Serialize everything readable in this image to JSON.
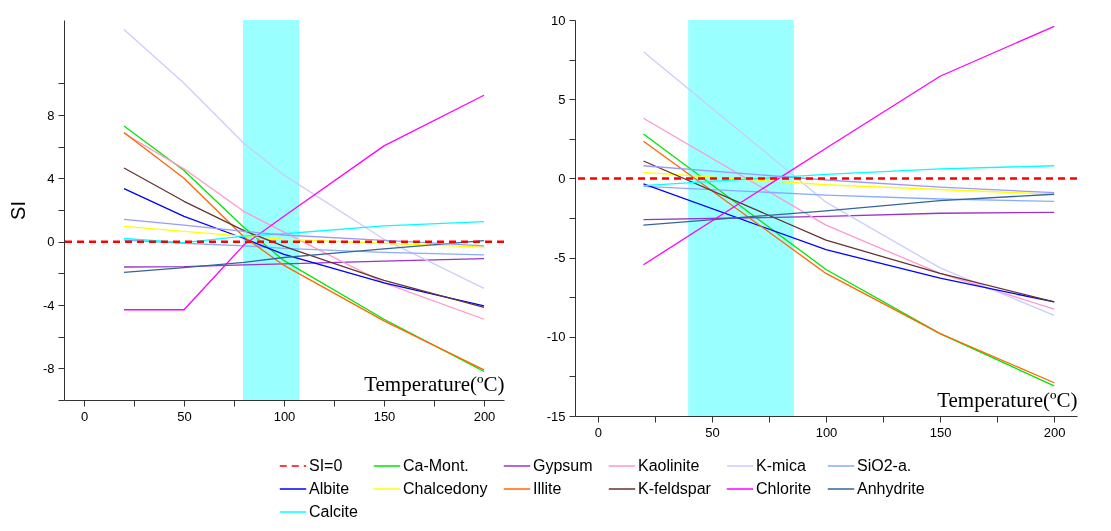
{
  "chart_data": [
    {
      "type": "line",
      "xlabel": "Temperature(ºC)",
      "ylabel": "SI",
      "legend": "bottom",
      "x": [
        20,
        50,
        80,
        100,
        150,
        200
      ],
      "xlim": [
        -10,
        210
      ],
      "xticks": [
        0,
        {
          "value": 25,
          "label": null
        },
        50,
        {
          "value": 75,
          "label": null
        },
        100,
        {
          "value": 125,
          "label": null
        },
        150,
        {
          "value": 175,
          "label": null
        },
        200
      ],
      "ylim": [
        -10,
        14
      ],
      "yticks": [
        {
          "value": -10,
          "label": null
        },
        -8,
        {
          "value": -6,
          "label": null
        },
        -4,
        {
          "value": -2,
          "label": null
        },
        0,
        {
          "value": 2,
          "label": null
        },
        4,
        {
          "value": 6,
          "label": null
        },
        8,
        {
          "value": 10,
          "label": null
        }
      ],
      "bands": [
        {
          "axis": "x",
          "from": 79.5,
          "to": 107.5,
          "color": "#99ffff"
        }
      ],
      "ref_lines": [
        {
          "axis": "y",
          "value": 0,
          "label": "SI=0",
          "color": "#ff0000",
          "line_style": "dashed"
        }
      ],
      "series": [
        {
          "name": "Ca-Mont.",
          "color": "#00e600",
          "values": [
            7.3,
            4.5,
            0.9,
            -1.2,
            -4.9,
            -8.2
          ]
        },
        {
          "name": "Gypsum",
          "color": "#9933cc",
          "values": [
            -1.6,
            -1.58,
            -1.47,
            -1.4,
            -1.23,
            -1.07
          ]
        },
        {
          "name": "Kaolinite",
          "color": "#ff99cc",
          "values": [
            6.85,
            4.6,
            1.9,
            0.6,
            -2.6,
            -4.9
          ]
        },
        {
          "name": "K-mica",
          "color": "#ccccff",
          "values": [
            13.4,
            10.0,
            6.2,
            4.2,
            0.15,
            -2.95
          ]
        },
        {
          "name": "SiO2-a.",
          "color": "#88aaff",
          "values": [
            0.1,
            -0.1,
            -0.26,
            -0.42,
            -0.67,
            -0.83
          ]
        },
        {
          "name": "Albite",
          "color": "#0000ff",
          "values": [
            3.35,
            1.6,
            0.2,
            -0.8,
            -2.6,
            -4.05
          ]
        },
        {
          "name": "Chalcedony",
          "color": "#ffff00",
          "values": [
            0.97,
            0.65,
            0.35,
            0.15,
            -0.1,
            -0.35
          ]
        },
        {
          "name": "Illite",
          "color": "#ff6600",
          "values": [
            6.9,
            4.0,
            0.3,
            -1.5,
            -5.0,
            -8.1
          ]
        },
        {
          "name": "K-feldspar",
          "color": "#663333",
          "values": [
            4.65,
            2.55,
            0.7,
            -0.3,
            -2.45,
            -4.15
          ]
        },
        {
          "name": "Chlorite",
          "color": "#ff00ff",
          "values": [
            -4.3,
            -4.3,
            -0.2,
            1.6,
            6.05,
            9.25
          ]
        },
        {
          "name": "Anhydrite",
          "color": "#336699",
          "values": [
            -1.94,
            -1.64,
            -1.31,
            -1.0,
            -0.46,
            0.06
          ]
        },
        {
          "name": "Calcite",
          "color": "#00ffff",
          "values": [
            0.2,
            -0.06,
            0.35,
            0.5,
            1.0,
            1.27
          ]
        },
        {
          "color": "#9999ff",
          "values": [
            1.41,
            1.05,
            0.65,
            0.42,
            0.08,
            -0.26
          ]
        }
      ]
    },
    {
      "type": "line",
      "xlabel": "Temperature(ºC)",
      "x": [
        20,
        100,
        150,
        200
      ],
      "xlim": [
        -10,
        210
      ],
      "xticks": [
        0,
        {
          "value": 25,
          "label": null
        },
        50,
        {
          "value": 75,
          "label": null
        },
        100,
        {
          "value": 125,
          "label": null
        },
        150,
        {
          "value": 175,
          "label": null
        },
        200
      ],
      "ylim": [
        -15,
        10
      ],
      "yticks": [
        -15,
        {
          "value": -12.5,
          "label": null
        },
        -10,
        {
          "value": -7.5,
          "label": null
        },
        -5,
        {
          "value": -2.5,
          "label": null
        },
        0,
        {
          "value": 2.5,
          "label": null
        },
        5,
        {
          "value": 7.5,
          "label": null
        },
        10
      ],
      "bands": [
        {
          "axis": "x",
          "from": 39.6,
          "to": 85.9,
          "color": "#99ffff"
        }
      ],
      "ref_lines": [
        {
          "axis": "y",
          "value": 0,
          "color": "#ff0000",
          "line_style": "dashed"
        }
      ],
      "series": [
        {
          "color": "#00e600",
          "values": [
            2.8,
            -5.75,
            -9.8,
            -13.1
          ]
        },
        {
          "color": "#9933cc",
          "values": [
            -2.6,
            -2.4,
            -2.2,
            -2.15
          ]
        },
        {
          "color": "#ff99cc",
          "values": [
            3.8,
            -2.95,
            -6.0,
            -8.25
          ]
        },
        {
          "color": "#ccccff",
          "values": [
            8.0,
            -1.5,
            -5.65,
            -8.65
          ]
        },
        {
          "color": "#88aaff",
          "values": [
            -0.5,
            -1.05,
            -1.3,
            -1.45
          ]
        },
        {
          "color": "#0000ff",
          "values": [
            -0.35,
            -4.5,
            -6.3,
            -7.8
          ]
        },
        {
          "color": "#ffff00",
          "values": [
            0.38,
            -0.4,
            -0.7,
            -1.0
          ]
        },
        {
          "color": "#ff6600",
          "values": [
            2.35,
            -6.0,
            -9.8,
            -12.9
          ]
        },
        {
          "color": "#663333",
          "values": [
            1.1,
            -3.9,
            -6.0,
            -7.8
          ]
        },
        {
          "color": "#ff00ff",
          "values": [
            -5.45,
            1.9,
            6.45,
            9.6
          ]
        },
        {
          "color": "#336699",
          "values": [
            -2.95,
            -2.05,
            -1.4,
            -1.0
          ]
        },
        {
          "color": "#00ffff",
          "values": [
            -0.45,
            0.25,
            0.6,
            0.8
          ]
        },
        {
          "color": "#9999ff",
          "values": [
            0.8,
            -0.1,
            -0.55,
            -0.9
          ]
        }
      ]
    }
  ]
}
